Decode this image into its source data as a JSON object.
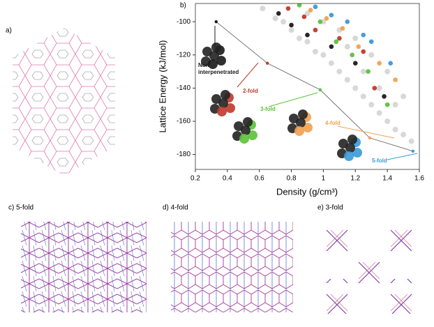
{
  "panels": {
    "a": "a)",
    "c": "c) 5-fold",
    "d": "d) 4-fold",
    "e": "e) 3-fold"
  },
  "chart_data": {
    "type": "scatter",
    "panel_label": "b)",
    "xlabel": "Density (g/cm³)",
    "ylabel": "Lattice Energy (kJ/mol)",
    "xlim": [
      0.2,
      1.6
    ],
    "ylim": [
      -189,
      -89
    ],
    "xticks": [
      0.2,
      0.4,
      0.6,
      0.8,
      1.0,
      1.2,
      1.4,
      1.6
    ],
    "yticks": [
      -180,
      -160,
      -140,
      -120,
      -100
    ],
    "series": [
      {
        "color": "#c8c8c8",
        "x": [
          0.62,
          0.7,
          0.75,
          0.8,
          0.85,
          0.9,
          0.95,
          1.0,
          1.05,
          1.1,
          1.15,
          1.2,
          1.25,
          1.3,
          1.35,
          1.4,
          1.45,
          1.5,
          1.55,
          0.9,
          1.0,
          1.1,
          1.2,
          1.3,
          1.4,
          1.5,
          1.45,
          1.35,
          1.25,
          1.15
        ],
        "y": [
          -92,
          -98,
          -100,
          -105,
          -110,
          -112,
          -118,
          -120,
          -125,
          -130,
          -135,
          -140,
          -145,
          -150,
          -155,
          -160,
          -165,
          -168,
          -172,
          -95,
          -100,
          -105,
          -110,
          -120,
          -130,
          -145,
          -150,
          -140,
          -130,
          -115
        ]
      },
      {
        "color": "#1a1a1a",
        "x": [
          0.72,
          0.8,
          0.9,
          1.05,
          1.2,
          1.38
        ],
        "y": [
          -95,
          -102,
          -108,
          -115,
          -125,
          -145
        ]
      },
      {
        "color": "#c0392b",
        "x": [
          0.78,
          0.88,
          0.95,
          1.1,
          1.25,
          1.32
        ],
        "y": [
          -92,
          -97,
          -105,
          -110,
          -118,
          -140
        ]
      },
      {
        "color": "#5bc236",
        "x": [
          0.85,
          0.98,
          1.08,
          1.18,
          1.28,
          1.4
        ],
        "y": [
          -90,
          -100,
          -112,
          -120,
          -130,
          -150
        ]
      },
      {
        "color": "#f0a050",
        "x": [
          0.92,
          1.02,
          1.12,
          1.22,
          1.35,
          1.45
        ],
        "y": [
          -93,
          -98,
          -104,
          -115,
          -125,
          -135
        ]
      },
      {
        "color": "#3a9ad9",
        "x": [
          0.95,
          1.05,
          1.15,
          1.25,
          1.3,
          1.42
        ],
        "y": [
          -91,
          -96,
          -100,
          -108,
          -112,
          -125
        ]
      }
    ],
    "minima": {
      "line_color": "#666666",
      "x": [
        0.33,
        0.65,
        0.98,
        1.29,
        1.56
      ],
      "y": [
        -100,
        -125,
        -141,
        -170,
        -178
      ],
      "colors": [
        "#1a1a1a",
        "#c0392b",
        "#5bc236",
        "#f0a050",
        "#3a9ad9"
      ]
    },
    "annotations": [
      {
        "text": "Non-",
        "color": "#1a1a1a"
      },
      {
        "text": "interpenetrated",
        "color": "#1a1a1a"
      },
      {
        "text": "2-fold",
        "color": "#c0392b"
      },
      {
        "text": "3-fold",
        "color": "#5bc236"
      },
      {
        "text": "4-fold",
        "color": "#f0a050"
      },
      {
        "text": "5-fold",
        "color": "#3a9ad9"
      }
    ]
  }
}
